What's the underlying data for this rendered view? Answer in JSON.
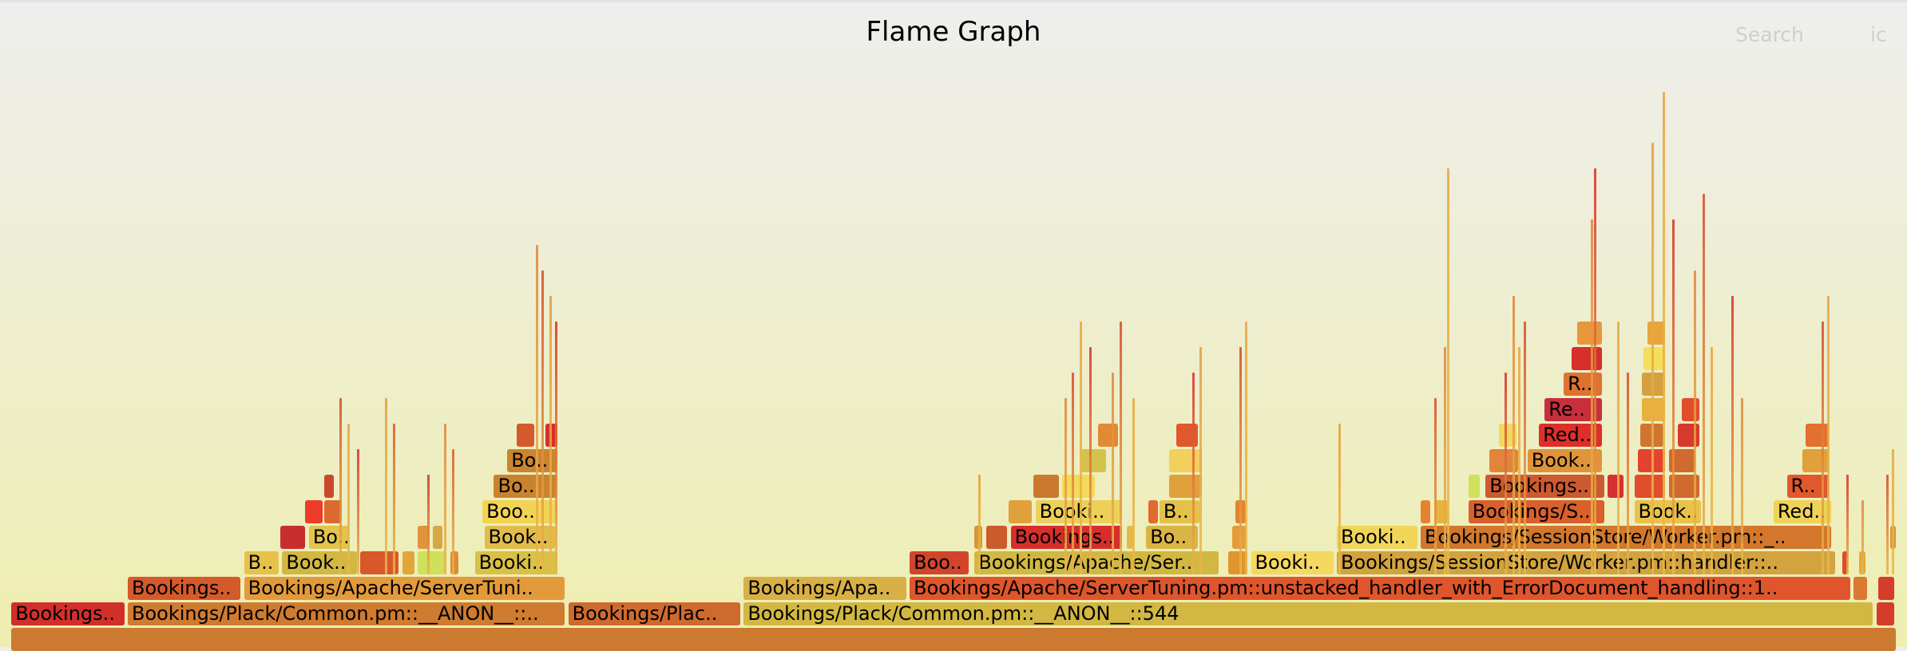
{
  "header": {
    "title": "Flame Graph",
    "search_label": "Search",
    "ic_label": "ic"
  },
  "frames": [
    {
      "label": "",
      "depth": 0,
      "start": 0.006,
      "width": 0.9888,
      "color": "#cc7a30"
    },
    {
      "label": "Bookings..",
      "depth": 1,
      "start": 0.006,
      "width": 0.06,
      "color": "#d12f2a"
    },
    {
      "label": "Bookings/Plack/Common.pm::__ANON__::..",
      "depth": 1,
      "start": 0.067,
      "width": 0.23,
      "color": "#cf7b30"
    },
    {
      "label": "Bookings/Plac..",
      "depth": 1,
      "start": 0.298,
      "width": 0.091,
      "color": "#cf6a2e"
    },
    {
      "label": "Bookings/Plack/Common.pm::__ANON__::544",
      "depth": 1,
      "start": 0.39,
      "width": 0.593,
      "color": "#d2b842"
    },
    {
      "label": "",
      "depth": 1,
      "start": 0.984,
      "width": 0.01,
      "color": "#d63c2a"
    },
    {
      "label": "Bookings..",
      "depth": 2,
      "start": 0.067,
      "width": 0.06,
      "color": "#d45a2c"
    },
    {
      "label": "Bookings/Apache/ServerTuni..",
      "depth": 2,
      "start": 0.128,
      "width": 0.169,
      "color": "#e39a3a"
    },
    {
      "label": "Bookings/Apa..",
      "depth": 2,
      "start": 0.39,
      "width": 0.086,
      "color": "#d8b045"
    },
    {
      "label": "Bookings/Apache/ServerTuning.pm::unstacked_handler_with_ErrorDocument_handling::1..",
      "depth": 2,
      "start": 0.477,
      "width": 0.494,
      "color": "#df552c"
    },
    {
      "label": "",
      "depth": 2,
      "start": 0.972,
      "width": 0.008,
      "color": "#d97a30"
    },
    {
      "label": "",
      "depth": 2,
      "start": 0.985,
      "width": 0.009,
      "color": "#d63c2a"
    },
    {
      "label": "B..",
      "depth": 3,
      "start": 0.128,
      "width": 0.019,
      "color": "#e7c24a"
    },
    {
      "label": "Book..",
      "depth": 3,
      "start": 0.148,
      "width": 0.04,
      "color": "#d2b842"
    },
    {
      "label": "",
      "depth": 3,
      "start": 0.189,
      "width": 0.021,
      "color": "#d8582c"
    },
    {
      "label": "",
      "depth": 3,
      "start": 0.211,
      "width": 0.007,
      "color": "#e1a53c"
    },
    {
      "label": "",
      "depth": 3,
      "start": 0.219,
      "width": 0.016,
      "color": "#cfe05a"
    },
    {
      "label": "",
      "depth": 3,
      "start": 0.236,
      "width": 0.005,
      "color": "#e08a34"
    },
    {
      "label": "Booki..",
      "depth": 3,
      "start": 0.249,
      "width": 0.044,
      "color": "#d9c047"
    },
    {
      "label": "Boo..",
      "depth": 3,
      "start": 0.477,
      "width": 0.032,
      "color": "#d2452c"
    },
    {
      "label": "Bookings/Apache/Ser..",
      "depth": 3,
      "start": 0.511,
      "width": 0.129,
      "color": "#d2b842"
    },
    {
      "label": "",
      "depth": 3,
      "start": 0.644,
      "width": 0.011,
      "color": "#e0952f"
    },
    {
      "label": "Booki..",
      "depth": 3,
      "start": 0.656,
      "width": 0.044,
      "color": "#f4d860"
    },
    {
      "label": "Bookings/SessionStore/Worker.pm::handler::..",
      "depth": 3,
      "start": 0.701,
      "width": 0.262,
      "color": "#d2a33e"
    },
    {
      "label": "",
      "depth": 3,
      "start": 0.966,
      "width": 0.004,
      "color": "#dc4b2e"
    },
    {
      "label": "",
      "depth": 3,
      "start": 0.975,
      "width": 0.004,
      "color": "#e5a83c"
    },
    {
      "label": "",
      "depth": 4,
      "start": 0.147,
      "width": 0.014,
      "color": "#c72f2f"
    },
    {
      "label": "Bo..",
      "depth": 4,
      "start": 0.162,
      "width": 0.022,
      "color": "#e2c44b"
    },
    {
      "label": "",
      "depth": 4,
      "start": 0.219,
      "width": 0.007,
      "color": "#e0953a"
    },
    {
      "label": "",
      "depth": 4,
      "start": 0.227,
      "width": 0.006,
      "color": "#d4a845"
    },
    {
      "label": "Book..",
      "depth": 4,
      "start": 0.254,
      "width": 0.038,
      "color": "#e2bc4a"
    },
    {
      "label": "",
      "depth": 4,
      "start": 0.511,
      "width": 0.005,
      "color": "#d9953a"
    },
    {
      "label": "",
      "depth": 4,
      "start": 0.517,
      "width": 0.012,
      "color": "#cd5a2a"
    },
    {
      "label": "Bookings..",
      "depth": 4,
      "start": 0.53,
      "width": 0.059,
      "color": "#d62e2a"
    },
    {
      "label": "",
      "depth": 4,
      "start": 0.591,
      "width": 0.004,
      "color": "#e6b84a"
    },
    {
      "label": "Bo..",
      "depth": 4,
      "start": 0.601,
      "width": 0.028,
      "color": "#dbb544"
    },
    {
      "label": "",
      "depth": 4,
      "start": 0.646,
      "width": 0.008,
      "color": "#e59c38"
    },
    {
      "label": "Booki..",
      "depth": 4,
      "start": 0.701,
      "width": 0.043,
      "color": "#f0d55a"
    },
    {
      "label": "Bookings/SessionStore/Worker.pm::_..",
      "depth": 4,
      "start": 0.745,
      "width": 0.216,
      "color": "#d2772c"
    },
    {
      "label": "",
      "depth": 4,
      "start": 0.991,
      "width": 0.004,
      "color": "#d9953a"
    },
    {
      "label": "",
      "depth": 5,
      "start": 0.16,
      "width": 0.01,
      "color": "#ee3c2a"
    },
    {
      "label": "",
      "depth": 5,
      "start": 0.17,
      "width": 0.01,
      "color": "#dc6a30"
    },
    {
      "label": "Boo..",
      "depth": 5,
      "start": 0.253,
      "width": 0.04,
      "color": "#f3d354"
    },
    {
      "label": "",
      "depth": 5,
      "start": 0.529,
      "width": 0.013,
      "color": "#e0a03a"
    },
    {
      "label": "Booki..",
      "depth": 5,
      "start": 0.543,
      "width": 0.046,
      "color": "#ecd058"
    },
    {
      "label": "",
      "depth": 5,
      "start": 0.602,
      "width": 0.006,
      "color": "#e06a30"
    },
    {
      "label": "B..",
      "depth": 5,
      "start": 0.608,
      "width": 0.022,
      "color": "#e4c24a"
    },
    {
      "label": "",
      "depth": 5,
      "start": 0.648,
      "width": 0.006,
      "color": "#e2852f"
    },
    {
      "label": "",
      "depth": 5,
      "start": 0.745,
      "width": 0.006,
      "color": "#e4842f"
    },
    {
      "label": "",
      "depth": 5,
      "start": 0.752,
      "width": 0.008,
      "color": "#e8b43e"
    },
    {
      "label": "Bookings/S..",
      "depth": 5,
      "start": 0.77,
      "width": 0.072,
      "color": "#d9602c"
    },
    {
      "label": "Book..",
      "depth": 5,
      "start": 0.857,
      "width": 0.036,
      "color": "#e8c24a"
    },
    {
      "label": "Red..",
      "depth": 5,
      "start": 0.93,
      "width": 0.031,
      "color": "#efd258"
    },
    {
      "label": "",
      "depth": 6,
      "start": 0.17,
      "width": 0.006,
      "color": "#c84a2d"
    },
    {
      "label": "Bo..",
      "depth": 6,
      "start": 0.259,
      "width": 0.034,
      "color": "#c9832e"
    },
    {
      "label": "",
      "depth": 6,
      "start": 0.542,
      "width": 0.014,
      "color": "#ca7a30"
    },
    {
      "label": "",
      "depth": 6,
      "start": 0.557,
      "width": 0.018,
      "color": "#f5d95a"
    },
    {
      "label": "",
      "depth": 6,
      "start": 0.613,
      "width": 0.018,
      "color": "#e0a03a"
    },
    {
      "label": "",
      "depth": 6,
      "start": 0.77,
      "width": 0.007,
      "color": "#cfe05a"
    },
    {
      "label": "Bookings..",
      "depth": 6,
      "start": 0.779,
      "width": 0.063,
      "color": "#cd5a2e"
    },
    {
      "label": "",
      "depth": 6,
      "start": 0.843,
      "width": 0.009,
      "color": "#d72f32"
    },
    {
      "label": "",
      "depth": 6,
      "start": 0.857,
      "width": 0.017,
      "color": "#e04e2c"
    },
    {
      "label": "",
      "depth": 6,
      "start": 0.875,
      "width": 0.017,
      "color": "#d06a2e"
    },
    {
      "label": "R..",
      "depth": 6,
      "start": 0.937,
      "width": 0.023,
      "color": "#e0582c"
    },
    {
      "label": "Bo..",
      "depth": 7,
      "start": 0.266,
      "width": 0.027,
      "color": "#ca852f"
    },
    {
      "label": "",
      "depth": 7,
      "start": 0.567,
      "width": 0.014,
      "color": "#d4c24a"
    },
    {
      "label": "",
      "depth": 7,
      "start": 0.613,
      "width": 0.018,
      "color": "#f1d15a"
    },
    {
      "label": "",
      "depth": 7,
      "start": 0.781,
      "width": 0.016,
      "color": "#e0853a"
    },
    {
      "label": "Book..",
      "depth": 7,
      "start": 0.801,
      "width": 0.04,
      "color": "#df943a"
    },
    {
      "label": "",
      "depth": 7,
      "start": 0.859,
      "width": 0.015,
      "color": "#e4442e"
    },
    {
      "label": "",
      "depth": 7,
      "start": 0.875,
      "width": 0.015,
      "color": "#d06a2e"
    },
    {
      "label": "",
      "depth": 7,
      "start": 0.945,
      "width": 0.015,
      "color": "#e0a03a"
    },
    {
      "label": "",
      "depth": 8,
      "start": 0.271,
      "width": 0.01,
      "color": "#d45a2c"
    },
    {
      "label": "",
      "depth": 8,
      "start": 0.286,
      "width": 0.007,
      "color": "#d82f2a"
    },
    {
      "label": "",
      "depth": 8,
      "start": 0.576,
      "width": 0.011,
      "color": "#e08a34"
    },
    {
      "label": "",
      "depth": 8,
      "start": 0.617,
      "width": 0.012,
      "color": "#e0582c"
    },
    {
      "label": "",
      "depth": 8,
      "start": 0.786,
      "width": 0.01,
      "color": "#f3d860"
    },
    {
      "label": "Red..",
      "depth": 8,
      "start": 0.807,
      "width": 0.034,
      "color": "#de2f2a"
    },
    {
      "label": "",
      "depth": 8,
      "start": 0.86,
      "width": 0.013,
      "color": "#cf7530"
    },
    {
      "label": "",
      "depth": 8,
      "start": 0.88,
      "width": 0.012,
      "color": "#d63a2a"
    },
    {
      "label": "",
      "depth": 8,
      "start": 0.947,
      "width": 0.013,
      "color": "#e3702e"
    },
    {
      "label": "Re..",
      "depth": 9,
      "start": 0.81,
      "width": 0.031,
      "color": "#c92e3c"
    },
    {
      "label": "",
      "depth": 9,
      "start": 0.861,
      "width": 0.013,
      "color": "#e7b040"
    },
    {
      "label": "",
      "depth": 9,
      "start": 0.882,
      "width": 0.01,
      "color": "#e04e2c"
    },
    {
      "label": "R..",
      "depth": 10,
      "start": 0.82,
      "width": 0.021,
      "color": "#dd7330"
    },
    {
      "label": "",
      "depth": 10,
      "start": 0.861,
      "width": 0.013,
      "color": "#d5a040"
    },
    {
      "label": "",
      "depth": 11,
      "start": 0.824,
      "width": 0.017,
      "color": "#d72f2a"
    },
    {
      "label": "",
      "depth": 11,
      "start": 0.862,
      "width": 0.012,
      "color": "#f5de5a"
    },
    {
      "label": "",
      "depth": 12,
      "start": 0.827,
      "width": 0.014,
      "color": "#e8983a"
    },
    {
      "label": "",
      "depth": 12,
      "start": 0.864,
      "width": 0.01,
      "color": "#e8a53c"
    }
  ],
  "towers": [
    {
      "start": 0.178,
      "top_depth": 9,
      "color": "#d44a2c"
    },
    {
      "start": 0.182,
      "top_depth": 8,
      "color": "#e8a53c"
    },
    {
      "start": 0.187,
      "top_depth": 7,
      "color": "#d72f2a"
    },
    {
      "start": 0.202,
      "top_depth": 9,
      "color": "#e0a03a"
    },
    {
      "start": 0.206,
      "top_depth": 8,
      "color": "#d45a2c"
    },
    {
      "start": 0.224,
      "top_depth": 6,
      "color": "#d72f2a"
    },
    {
      "start": 0.233,
      "top_depth": 8,
      "color": "#e0853a"
    },
    {
      "start": 0.237,
      "top_depth": 7,
      "color": "#d45a2c"
    },
    {
      "start": 0.281,
      "top_depth": 15,
      "color": "#e0853a"
    },
    {
      "start": 0.284,
      "top_depth": 14,
      "color": "#d44a2c"
    },
    {
      "start": 0.288,
      "top_depth": 13,
      "color": "#e39a3a"
    },
    {
      "start": 0.291,
      "top_depth": 12,
      "color": "#d72f2a"
    },
    {
      "start": 0.513,
      "top_depth": 6,
      "color": "#e0a03a"
    },
    {
      "start": 0.558,
      "top_depth": 9,
      "color": "#e0853a"
    },
    {
      "start": 0.562,
      "top_depth": 10,
      "color": "#d44a2c"
    },
    {
      "start": 0.566,
      "top_depth": 12,
      "color": "#e8a53c"
    },
    {
      "start": 0.571,
      "top_depth": 11,
      "color": "#d72f2a"
    },
    {
      "start": 0.583,
      "top_depth": 10,
      "color": "#e0853a"
    },
    {
      "start": 0.587,
      "top_depth": 12,
      "color": "#d44a2c"
    },
    {
      "start": 0.594,
      "top_depth": 9,
      "color": "#e8a53c"
    },
    {
      "start": 0.625,
      "top_depth": 10,
      "color": "#d72f2a"
    },
    {
      "start": 0.629,
      "top_depth": 11,
      "color": "#e0a03a"
    },
    {
      "start": 0.65,
      "top_depth": 11,
      "color": "#d44a2c"
    },
    {
      "start": 0.653,
      "top_depth": 12,
      "color": "#e8a53c"
    },
    {
      "start": 0.702,
      "top_depth": 8,
      "color": "#e0a03a"
    },
    {
      "start": 0.752,
      "top_depth": 9,
      "color": "#d44a2c"
    },
    {
      "start": 0.757,
      "top_depth": 11,
      "color": "#e0853a"
    },
    {
      "start": 0.759,
      "top_depth": 18,
      "color": "#e8a53c"
    },
    {
      "start": 0.789,
      "top_depth": 10,
      "color": "#d72f2a"
    },
    {
      "start": 0.793,
      "top_depth": 13,
      "color": "#e0853a"
    },
    {
      "start": 0.796,
      "top_depth": 11,
      "color": "#e8a53c"
    },
    {
      "start": 0.799,
      "top_depth": 12,
      "color": "#d44a2c"
    },
    {
      "start": 0.834,
      "top_depth": 16,
      "color": "#e0853a"
    },
    {
      "start": 0.836,
      "top_depth": 18,
      "color": "#d72f2a"
    },
    {
      "start": 0.848,
      "top_depth": 12,
      "color": "#e8a53c"
    },
    {
      "start": 0.853,
      "top_depth": 10,
      "color": "#d44a2c"
    },
    {
      "start": 0.866,
      "top_depth": 19,
      "color": "#e0a03a"
    },
    {
      "start": 0.872,
      "top_depth": 21,
      "color": "#e8a53c"
    },
    {
      "start": 0.877,
      "top_depth": 16,
      "color": "#d72f2a"
    },
    {
      "start": 0.888,
      "top_depth": 14,
      "color": "#e0853a"
    },
    {
      "start": 0.893,
      "top_depth": 17,
      "color": "#d44a2c"
    },
    {
      "start": 0.897,
      "top_depth": 11,
      "color": "#e8a53c"
    },
    {
      "start": 0.908,
      "top_depth": 13,
      "color": "#d72f2a"
    },
    {
      "start": 0.913,
      "top_depth": 9,
      "color": "#e0853a"
    },
    {
      "start": 0.955,
      "top_depth": 12,
      "color": "#d44a2c"
    },
    {
      "start": 0.958,
      "top_depth": 13,
      "color": "#e8a53c"
    },
    {
      "start": 0.968,
      "top_depth": 6,
      "color": "#d72f2a"
    },
    {
      "start": 0.976,
      "top_depth": 5,
      "color": "#e0853a"
    },
    {
      "start": 0.989,
      "top_depth": 6,
      "color": "#d44a2c"
    },
    {
      "start": 0.992,
      "top_depth": 7,
      "color": "#e8a53c"
    }
  ]
}
